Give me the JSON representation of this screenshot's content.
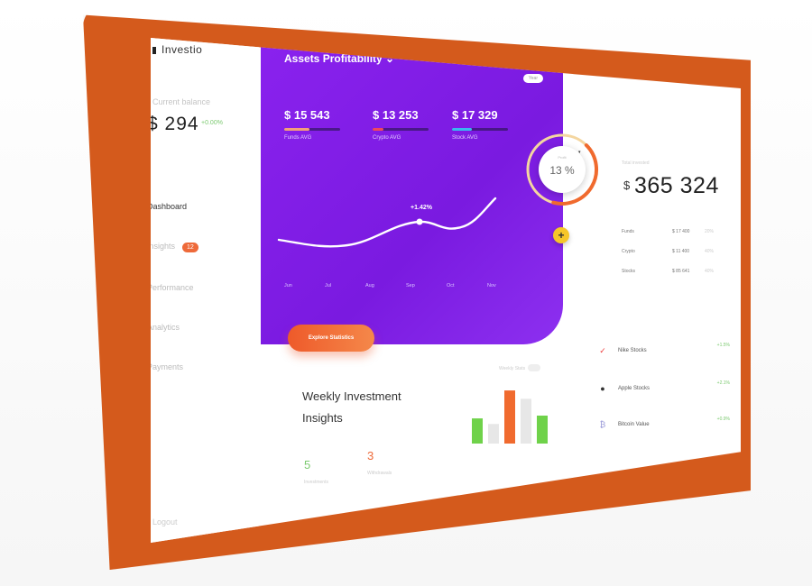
{
  "sidebar": {
    "brand": "Investio",
    "balance_label": "Current balance",
    "balance_value": "$ 294",
    "balance_change": "+0.00%",
    "items": [
      {
        "label": "Dashboard"
      },
      {
        "label": "Insights",
        "badge": "12"
      },
      {
        "label": "Performance"
      },
      {
        "label": "Analytics"
      },
      {
        "label": "Payments"
      }
    ],
    "bottom": "Logout"
  },
  "hero": {
    "title": "Assets Profitability",
    "period_pill": "Year",
    "kpis": [
      {
        "value": "$ 15 543",
        "label": "Funds AVG",
        "progress": 0.45,
        "color": "#f3a07a"
      },
      {
        "value": "$ 13 253",
        "label": "Crypto AVG",
        "progress": 0.2,
        "color": "#f0475e"
      },
      {
        "value": "$ 17 329",
        "label": "Stock AVG",
        "progress": 0.35,
        "color": "#39b8f0"
      }
    ],
    "cta": "Explore Statistics",
    "accent": "#7b1de6"
  },
  "gauge": {
    "label": "Profit",
    "value": "13 %",
    "fraction": 0.13,
    "plus": "+"
  },
  "chart_data": {
    "type": "line",
    "categories": [
      "Jun",
      "Jul",
      "Aug",
      "Sep",
      "Oct",
      "Nov"
    ],
    "annotation": "+1.42%",
    "highlight_index": 3,
    "title": "",
    "xlabel": "",
    "ylabel": ""
  },
  "portfolio": {
    "label": "Total invested",
    "currency": "$",
    "total": "365 324",
    "rows": [
      {
        "name": "Funds",
        "value": "$ 17 400",
        "pct": "20%"
      },
      {
        "name": "Crypto",
        "value": "$ 11 400",
        "pct": "40%"
      },
      {
        "name": "Stocks",
        "value": "$ 85 641",
        "pct": "40%"
      }
    ]
  },
  "holdings": [
    {
      "icon": "nike-icon",
      "glyph": "✓",
      "name": "Nike Stocks",
      "pct": "+1.5%"
    },
    {
      "icon": "apple-icon",
      "glyph": "",
      "name": "Apple Stocks",
      "pct": "+2.1%"
    },
    {
      "icon": "bitcoin-icon",
      "glyph": "₿",
      "name": "Bitcoin Value",
      "pct": "+0.9%"
    }
  ],
  "weekly": {
    "title_line1": "Weekly Investment",
    "title_line2": "Insights",
    "stat_a": {
      "value": "5",
      "label": "Investments",
      "color": "#7bc96f"
    },
    "stat_b": {
      "value": "3",
      "label": "Withdrawals",
      "color": "#ee6a3a"
    },
    "bars": [
      {
        "value": 0.45,
        "color": "#6fd24a"
      },
      {
        "value": 0.35,
        "color": "#e7e7e7"
      },
      {
        "value": 0.95,
        "color": "#f06a2e"
      },
      {
        "value": 0.8,
        "color": "#e7e7e7"
      },
      {
        "value": 0.5,
        "color": "#6fd24a"
      }
    ],
    "scale_label": "Weekly Stats"
  }
}
